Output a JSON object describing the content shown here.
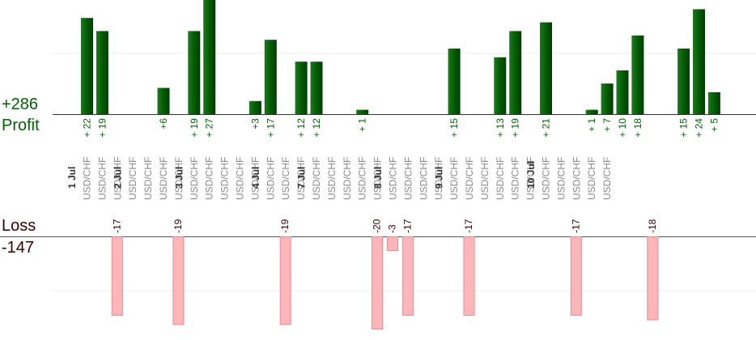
{
  "summary": {
    "profit_total": "+286",
    "profit_label": "Profit",
    "loss_label": "Loss",
    "loss_total": "-147",
    "profit_color": "#006400",
    "loss_color": "#3a0000",
    "loss_bar_color": "#ffb6b9"
  },
  "chart_data": {
    "type": "bar",
    "instrument": "USD/CHF",
    "days": [
      {
        "label": "1 Jul",
        "slots": 3
      },
      {
        "label": "2 Jul",
        "slots": 4
      },
      {
        "label": "3 Jul",
        "slots": 5
      },
      {
        "label": "4 Jul",
        "slots": 3
      },
      {
        "label": "7 Jul",
        "slots": 5
      },
      {
        "label": "8 Jul",
        "slots": 4
      },
      {
        "label": "9 Jul",
        "slots": 6
      },
      {
        "label": "10 Jul",
        "slots": 5
      }
    ],
    "profit_series": [
      {
        "slot": 0,
        "value": 22,
        "label": "+ 22"
      },
      {
        "slot": 1,
        "value": 19,
        "label": "+ 19"
      },
      {
        "slot": 5,
        "value": 6,
        "label": "+6"
      },
      {
        "slot": 7,
        "value": 19,
        "label": "+ 19"
      },
      {
        "slot": 8,
        "value": 27,
        "label": "+ 27"
      },
      {
        "slot": 11,
        "value": 3,
        "label": "+3"
      },
      {
        "slot": 12,
        "value": 17,
        "label": "+ 17"
      },
      {
        "slot": 14,
        "value": 12,
        "label": "+ 12"
      },
      {
        "slot": 15,
        "value": 12,
        "label": "+ 12"
      },
      {
        "slot": 18,
        "value": 1,
        "label": "+ 1"
      },
      {
        "slot": 24,
        "value": 15,
        "label": "+ 15"
      },
      {
        "slot": 27,
        "value": 13,
        "label": "+ 13"
      },
      {
        "slot": 28,
        "value": 19,
        "label": "+ 19"
      },
      {
        "slot": 30,
        "value": 21,
        "label": "+ 21"
      },
      {
        "slot": 33,
        "value": 1,
        "label": "+ 1"
      },
      {
        "slot": 34,
        "value": 7,
        "label": "+ 7"
      },
      {
        "slot": 35,
        "value": 10,
        "label": "+ 10"
      },
      {
        "slot": 36,
        "value": 18,
        "label": "+ 18"
      },
      {
        "slot": 39,
        "value": 15,
        "label": "+ 15"
      },
      {
        "slot": 40,
        "value": 24,
        "label": "+ 24"
      },
      {
        "slot": 41,
        "value": 5,
        "label": "+ 5"
      }
    ],
    "loss_series": [
      {
        "slot": 2,
        "value": -17,
        "label": "-17"
      },
      {
        "slot": 6,
        "value": -19,
        "label": "-19"
      },
      {
        "slot": 13,
        "value": -19,
        "label": "-19"
      },
      {
        "slot": 19,
        "value": -20,
        "label": "-20"
      },
      {
        "slot": 20,
        "value": -3,
        "label": "-3"
      },
      {
        "slot": 21,
        "value": -17,
        "label": "-17"
      },
      {
        "slot": 25,
        "value": -17,
        "label": "-17"
      },
      {
        "slot": 32,
        "value": -17,
        "label": "-17"
      },
      {
        "slot": 37,
        "value": -18,
        "label": "-18"
      }
    ],
    "grid": true
  }
}
